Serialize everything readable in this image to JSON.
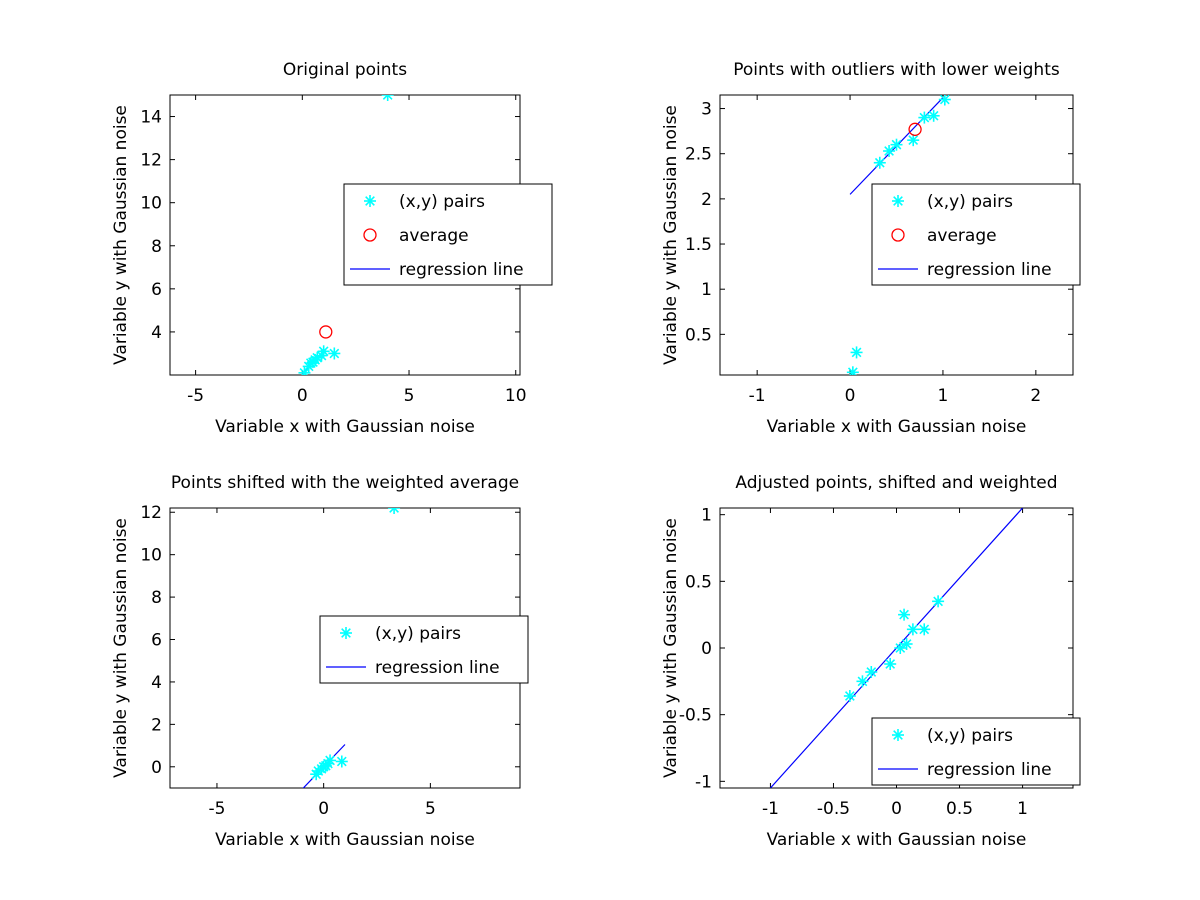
{
  "colors": {
    "points": "#00ffff",
    "average": "#ff0000",
    "regression": "#0000ff",
    "axes": "#000000",
    "background": "#ffffff"
  },
  "chart_data": [
    {
      "type": "scatter",
      "title": "Original points",
      "xlabel": "Variable x with Gaussian noise",
      "ylabel": "Variable y with Gaussian noise",
      "xlim": [
        -6.2,
        10.2
      ],
      "ylim": [
        2.0,
        15.0
      ],
      "xticks": [
        -5,
        0,
        5,
        10
      ],
      "yticks": [
        4,
        6,
        8,
        10,
        12,
        14
      ],
      "xtick_labels": [
        "-5",
        "0",
        "5",
        "10"
      ],
      "ytick_labels": [
        "4",
        "6",
        "8",
        "10",
        "12",
        "14"
      ],
      "grid": false,
      "legend_position": "right",
      "legend": [
        "(x,y) pairs",
        "average",
        "regression line"
      ],
      "points": [
        [
          0.1,
          2.1
        ],
        [
          0.3,
          2.4
        ],
        [
          0.4,
          2.55
        ],
        [
          0.5,
          2.6
        ],
        [
          0.6,
          2.7
        ],
        [
          0.7,
          2.8
        ],
        [
          0.9,
          2.9
        ],
        [
          1.0,
          3.1
        ],
        [
          1.5,
          3.0
        ],
        [
          4.0,
          15.0
        ]
      ],
      "average": [
        [
          1.1,
          4.0
        ]
      ],
      "regression_line": [
        [
          0.0,
          2.05
        ],
        [
          1.0,
          3.1
        ]
      ]
    },
    {
      "type": "scatter",
      "title": "Points with outliers with lower weights",
      "xlabel": "Variable x with Gaussian noise",
      "ylabel": "Variable y with Gaussian noise",
      "xlim": [
        -1.4,
        2.4
      ],
      "ylim": [
        0.05,
        3.15
      ],
      "xticks": [
        -1,
        0,
        1,
        2
      ],
      "yticks": [
        0.5,
        1,
        1.5,
        2,
        2.5,
        3
      ],
      "xtick_labels": [
        "-1",
        "0",
        "1",
        "2"
      ],
      "ytick_labels": [
        "0.5",
        "1",
        "1.5",
        "2",
        "2.5",
        "3"
      ],
      "grid": false,
      "legend_position": "right",
      "legend": [
        "(x,y) pairs",
        "average",
        "regression line"
      ],
      "points": [
        [
          0.32,
          2.4
        ],
        [
          0.42,
          2.53
        ],
        [
          0.5,
          2.6
        ],
        [
          0.68,
          2.65
        ],
        [
          0.8,
          2.9
        ],
        [
          0.9,
          2.92
        ],
        [
          1.02,
          3.1
        ],
        [
          0.07,
          0.3
        ],
        [
          0.03,
          0.08
        ]
      ],
      "average": [
        [
          0.7,
          2.77
        ]
      ],
      "regression_line": [
        [
          0.0,
          2.05
        ],
        [
          1.0,
          3.12
        ]
      ]
    },
    {
      "type": "scatter",
      "title": "Points shifted with the weighted average",
      "xlabel": "Variable x with Gaussian noise",
      "ylabel": "Variable y with Gaussian noise",
      "xlim": [
        -7.2,
        9.2
      ],
      "ylim": [
        -1.0,
        12.2
      ],
      "xticks": [
        -5,
        0,
        5
      ],
      "yticks": [
        0,
        2,
        4,
        6,
        8,
        10,
        12
      ],
      "xtick_labels": [
        "-5",
        "0",
        "5"
      ],
      "ytick_labels": [
        "0",
        "2",
        "4",
        "6",
        "8",
        "10",
        "12"
      ],
      "grid": false,
      "legend_position": "right",
      "legend": [
        "(x,y) pairs",
        "regression line"
      ],
      "points": [
        [
          -0.35,
          -0.35
        ],
        [
          -0.25,
          -0.2
        ],
        [
          -0.1,
          -0.1
        ],
        [
          0.0,
          0.0
        ],
        [
          0.1,
          0.05
        ],
        [
          0.2,
          0.15
        ],
        [
          0.3,
          0.3
        ],
        [
          0.85,
          0.25
        ],
        [
          3.3,
          12.2
        ]
      ],
      "regression_line": [
        [
          -1.0,
          -1.05
        ],
        [
          1.0,
          1.05
        ]
      ]
    },
    {
      "type": "scatter",
      "title": "Adjusted points, shifted and weighted",
      "xlabel": "Variable x with Gaussian noise",
      "ylabel": "Variable y with Gaussian noise",
      "xlim": [
        -1.4,
        1.4
      ],
      "ylim": [
        -1.05,
        1.05
      ],
      "xticks": [
        -1,
        -0.5,
        0,
        0.5,
        1
      ],
      "yticks": [
        -1,
        -0.5,
        0,
        0.5,
        1
      ],
      "xtick_labels": [
        "-1",
        "-0.5",
        "0",
        "0.5",
        "1"
      ],
      "ytick_labels": [
        "-1",
        "-0.5",
        "0",
        "0.5",
        "1"
      ],
      "grid": false,
      "legend_position": "bottom-right",
      "legend": [
        "(x,y) pairs",
        "regression line"
      ],
      "points": [
        [
          -0.37,
          -0.36
        ],
        [
          -0.27,
          -0.25
        ],
        [
          -0.2,
          -0.18
        ],
        [
          -0.05,
          -0.12
        ],
        [
          0.03,
          0.0
        ],
        [
          0.08,
          0.03
        ],
        [
          0.06,
          0.25
        ],
        [
          0.13,
          0.14
        ],
        [
          0.22,
          0.14
        ],
        [
          0.33,
          0.35
        ]
      ],
      "regression_line": [
        [
          -1.0,
          -1.05
        ],
        [
          1.0,
          1.05
        ]
      ]
    }
  ]
}
